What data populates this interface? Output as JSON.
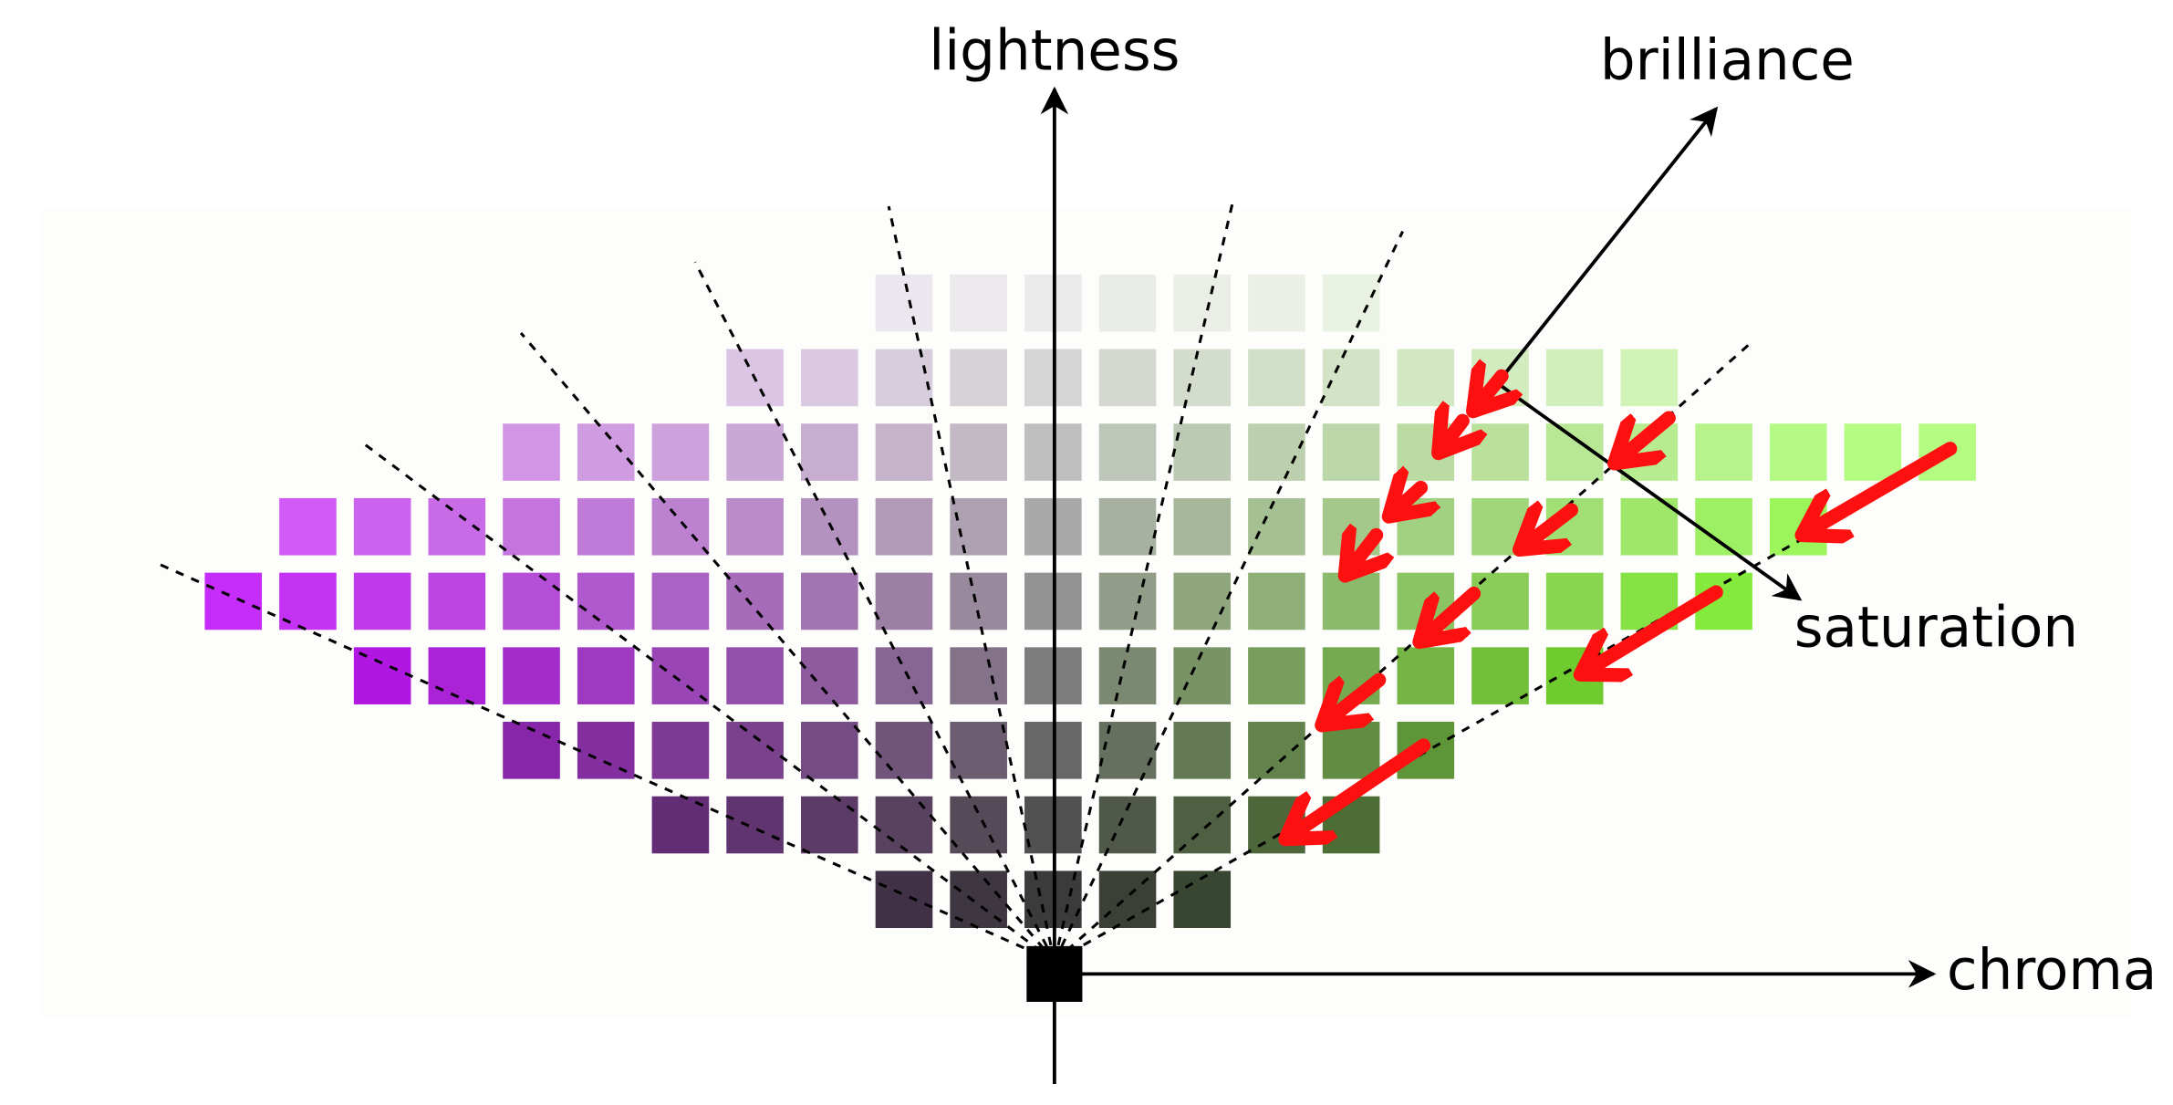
{
  "axes": [
    {
      "label": "lightness"
    },
    {
      "label": "brilliance"
    },
    {
      "label": "saturation"
    },
    {
      "label": "chroma"
    }
  ]
}
